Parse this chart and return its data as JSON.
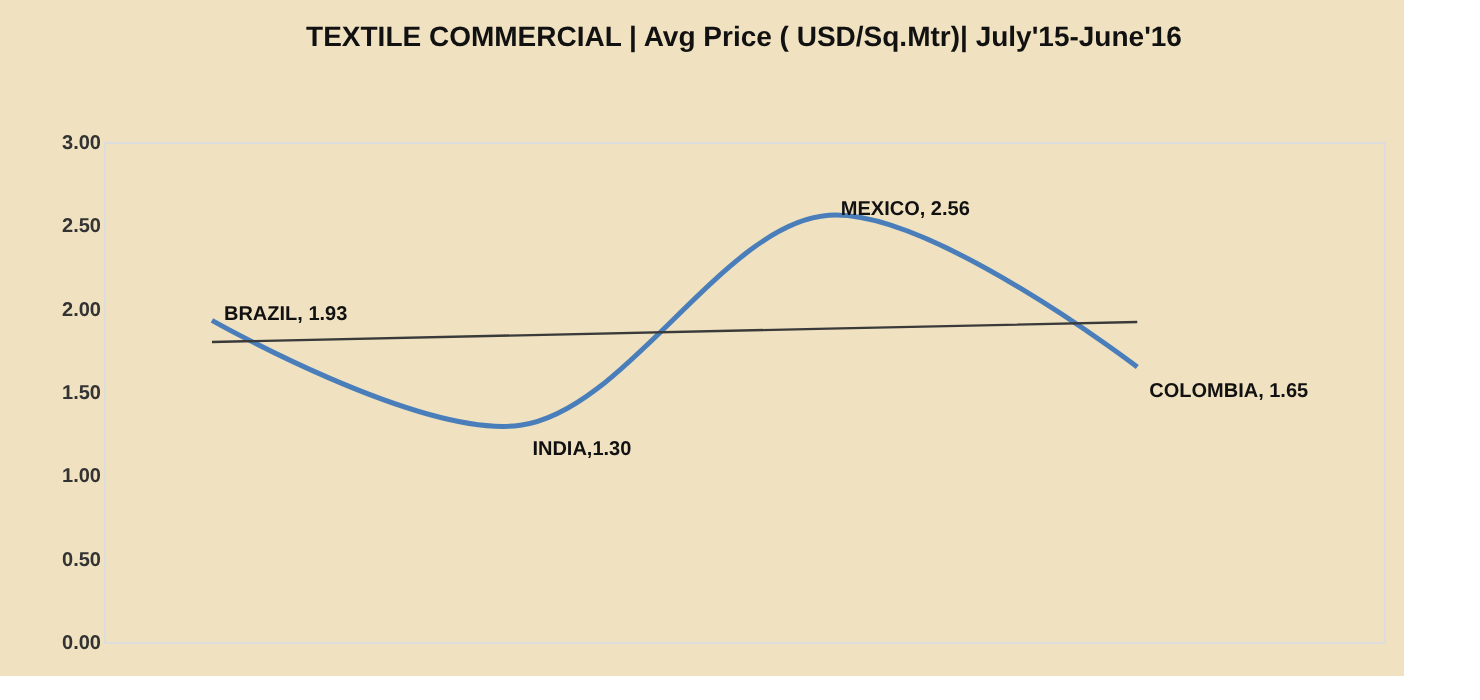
{
  "chart_data": {
    "type": "line",
    "title": "TEXTILE COMMERCIAL  | Avg Price ( USD/Sq.Mtr)| July'15-June'16",
    "categories": [
      "BRAZIL",
      "INDIA",
      "MEXICO",
      "COLOMBIA"
    ],
    "series": [
      {
        "color": "#4a7ebb",
        "values": [
          1.93,
          1.3,
          2.56,
          1.65
        ],
        "value_labels": [
          ", 1.93",
          ",1.30",
          ", 2.56",
          ", 1.65"
        ]
      },
      {
        "type": "line",
        "color": "#3a3a3a",
        "values": [
          1.8,
          1.84,
          1.88,
          1.92
        ]
      }
    ],
    "ylim": [
      0,
      3
    ],
    "yticks": [
      {
        "value": 0,
        "label": "0.00"
      },
      {
        "value": 0.5,
        "label": "0.50"
      },
      {
        "value": 1,
        "label": "1.00"
      },
      {
        "value": 1.5,
        "label": "1.50"
      },
      {
        "value": 2,
        "label": "2.00"
      },
      {
        "value": 2.5,
        "label": "2.50"
      },
      {
        "value": 3,
        "label": "3.00"
      }
    ],
    "tick_labels": "y",
    "grid": false,
    "marker": "none",
    "line_style": "solid"
  }
}
